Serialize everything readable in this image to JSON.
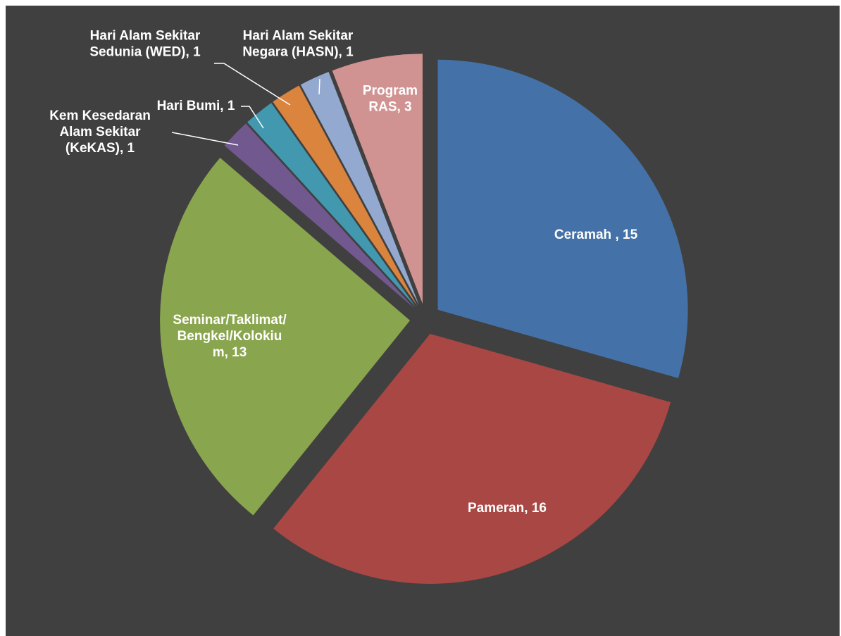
{
  "chart_data": {
    "type": "pie",
    "title": "",
    "categories": [
      "Ceramah",
      "Pameran",
      "Seminar/Taklimat/Bengkel/Kolokium",
      "Kem Kesedaran Alam Sekitar (KeKAS)",
      "Hari Bumi",
      "Hari Alam Sekitar Sedunia (WED)",
      "Hari Alam Sekitar Negara (HASN)",
      "Program RAS"
    ],
    "values": [
      15,
      16,
      13,
      1,
      1,
      1,
      1,
      3
    ],
    "colors": [
      "#4472A8",
      "#A94744",
      "#89A54E",
      "#71588F",
      "#4198AF",
      "#DB843D",
      "#93A9CF",
      "#D19392"
    ],
    "label_colors": [
      "#ffffff",
      "#ffffff",
      "#ffffff",
      "#ffffff",
      "#ffffff",
      "#ffffff",
      "#ffffff",
      "#ffffff"
    ],
    "labels": [
      [
        "Ceramah , 15"
      ],
      [
        "Pameran, 16"
      ],
      [
        "Seminar/Taklimat/",
        "Bengkel/Kolokiu",
        "m, 13"
      ],
      [
        "Kem Kesedaran",
        "Alam Sekitar",
        "(KeKAS), 1"
      ],
      [
        "Hari Bumi, 1"
      ],
      [
        "Hari Alam Sekitar",
        "Sedunia (WED), 1"
      ],
      [
        "Hari Alam Sekitar",
        "Negara (HASN), 1"
      ],
      [
        "Program",
        "RAS, 3"
      ]
    ],
    "exploded": true,
    "start_angle": "12 o'clock, clockwise",
    "legend": "none",
    "background": "#404040"
  }
}
